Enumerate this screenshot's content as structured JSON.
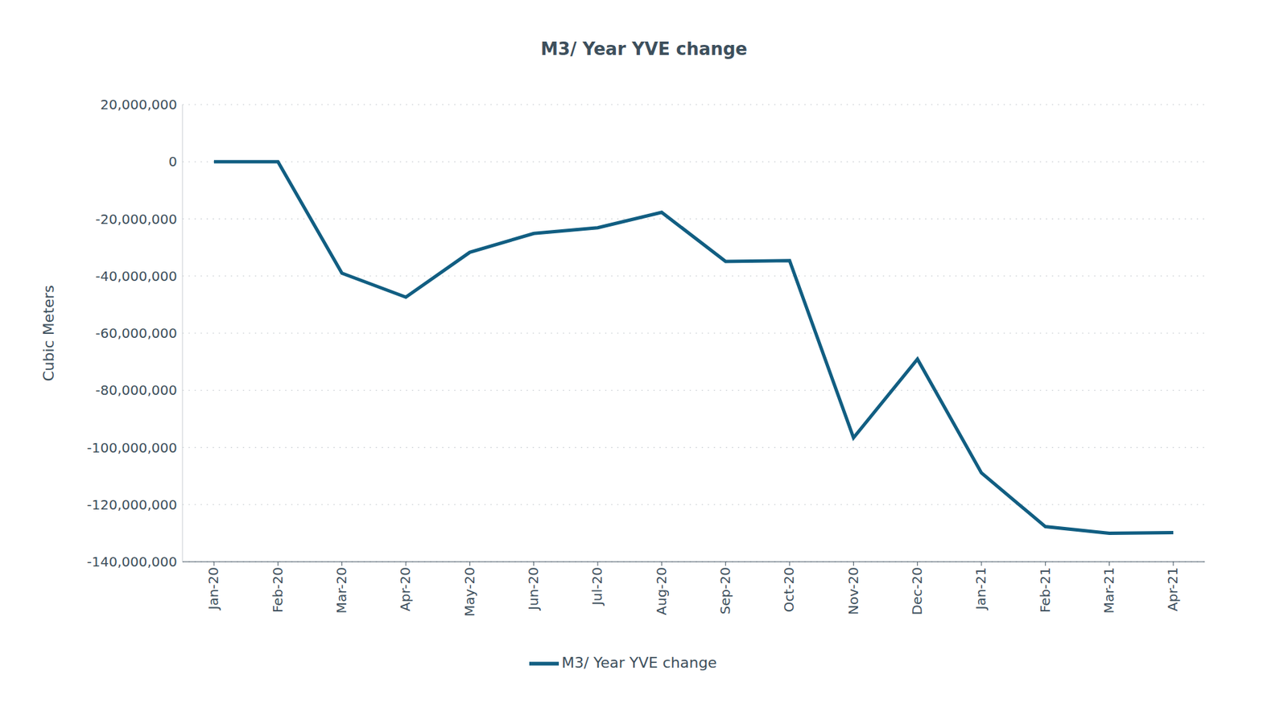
{
  "chart_data": {
    "type": "line",
    "title": "M3/ Year YVE change",
    "y_label": "Cubic Meters",
    "categories": [
      "Jan-20",
      "Feb-20",
      "Mar-20",
      "Apr-20",
      "May-20",
      "Jun-20",
      "Jul-20",
      "Aug-20",
      "Sep-20",
      "Oct-20",
      "Nov-20",
      "Dec-20",
      "Jan-21",
      "Feb-21",
      "Mar-21",
      "Apr-21"
    ],
    "series": [
      {
        "name": "M3/ Year YVE change",
        "color": "#115e82",
        "values": [
          0,
          0,
          -39000000,
          -47400000,
          -31700000,
          -25100000,
          -23100000,
          -17700000,
          -34900000,
          -34600000,
          -96600000,
          -69100000,
          -108900000,
          -127700000,
          -130000000,
          -129800000
        ]
      }
    ],
    "ylim": [
      -140000000,
      20000000
    ],
    "yticks": [
      {
        "value": -140000000,
        "label": "-140,000,000"
      },
      {
        "value": -120000000,
        "label": "-120,000,000"
      },
      {
        "value": -100000000,
        "label": "-100,000,000"
      },
      {
        "value": -80000000,
        "label": "-80,000,000"
      },
      {
        "value": -60000000,
        "label": "-60,000,000"
      },
      {
        "value": -40000000,
        "label": "-40,000,000"
      },
      {
        "value": -20000000,
        "label": "-20,000,000"
      },
      0,
      {
        "value": 20000000,
        "label": "20,000,000"
      }
    ],
    "grid": true,
    "legend": "bottom"
  }
}
